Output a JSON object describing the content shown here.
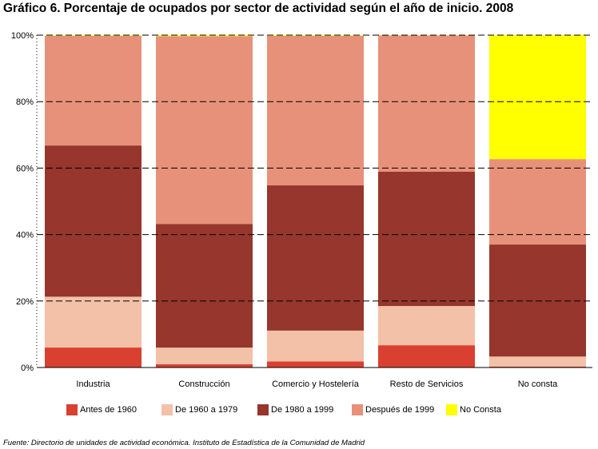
{
  "title": "Gráfico 6. Porcentaje de ocupados por sector de actividad según el año de inicio. 2008",
  "source": "Fuente: Directorio de unidades de actividad económica. Instituto de Estadística de la Comunidad de Madrid",
  "colors": {
    "Antes de 1960": "#d94030",
    "De 1960 a 1979": "#f3c0a8",
    "De 1980 a 1999": "#96362c",
    "Después de 1999": "#e8917a",
    "No Consta": "#ffff00",
    "background": "#ffffff",
    "gridline": "#000000"
  },
  "chart_data": {
    "type": "bar",
    "stacked": true,
    "normalized": true,
    "categories": [
      "Industria",
      "Construcción",
      "Comercio y Hostelería",
      "Resto de Servicios",
      "No consta"
    ],
    "series": [
      {
        "name": "Antes de 1960",
        "values": [
          6.0,
          1.0,
          1.8,
          6.7,
          0.3
        ]
      },
      {
        "name": "De 1960 a 1979",
        "values": [
          15.3,
          5.0,
          9.3,
          11.8,
          3.0
        ]
      },
      {
        "name": "De 1980 a 1999",
        "values": [
          45.5,
          37.2,
          43.7,
          40.4,
          33.7
        ]
      },
      {
        "name": "Después de 1999",
        "values": [
          33.0,
          56.5,
          45.0,
          41.0,
          25.7
        ]
      },
      {
        "name": "No Consta",
        "values": [
          0.2,
          0.3,
          0.2,
          0.1,
          37.3
        ]
      }
    ],
    "ylim": [
      0,
      100
    ],
    "yticks": [
      "0%",
      "20%",
      "40%",
      "60%",
      "80%",
      "100%"
    ],
    "ytick_values": [
      0,
      20,
      40,
      60,
      80,
      100
    ],
    "grid": "dashed horizontal",
    "legend": "bottom"
  }
}
